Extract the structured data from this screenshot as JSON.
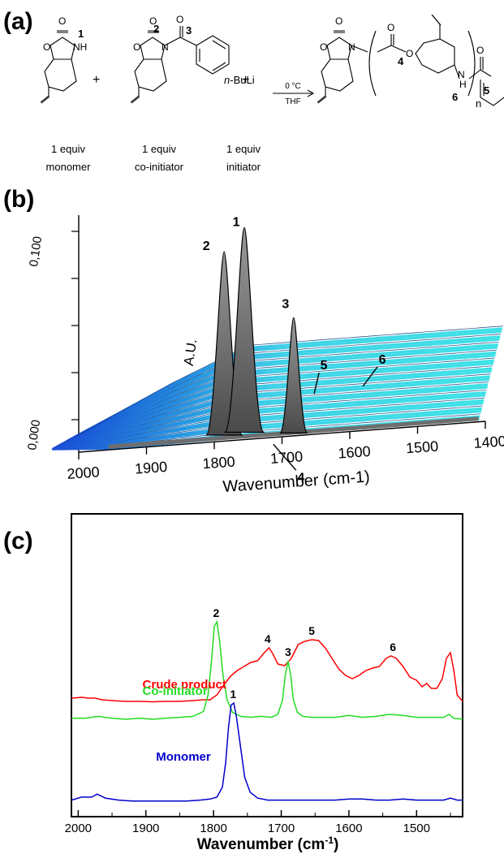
{
  "panels": {
    "a": "(a)",
    "b": "(b)",
    "c": "(c)"
  },
  "scheme": {
    "plus": "+",
    "reagent_prefix": "n",
    "reagent_suffix": "-BuLi",
    "condition_top": "0 °C",
    "condition_bottom": "THF",
    "subscript_n": "n",
    "atoms": {
      "O": "O",
      "NH": "NH",
      "N": "N",
      "H": "H"
    },
    "markers": [
      "1",
      "2",
      "3",
      "4",
      "5",
      "6"
    ],
    "captions": [
      {
        "line1": "1 equiv",
        "line2": "monomer"
      },
      {
        "line1": "1 equiv",
        "line2": "co-initiator"
      },
      {
        "line1": "1 equiv",
        "line2": "initiator"
      }
    ]
  },
  "colors": {
    "crude": "#ff0000",
    "coinitiator": "#22dd22",
    "monomer": "#0000cc",
    "surface_cyan": "#33e0e6",
    "surface_blue": "#1f6fe0",
    "surface_grey": "#6e6e6e"
  },
  "chart_data": [
    {
      "type": "area",
      "panel": "(b)",
      "title": "",
      "xlabel": "Wavenumber (cm-1)",
      "ylabel": "A.U.",
      "x_ticks": [
        2000,
        1900,
        1800,
        1700,
        1600,
        1500,
        1400
      ],
      "x_tick_labels": [
        "2000",
        "1900",
        "1800",
        "1700",
        "1600",
        "1500",
        "1400"
      ],
      "xlim": [
        2000,
        1400
      ],
      "y_tick_labels": [
        "0,000",
        "0,100"
      ],
      "peaks": [
        {
          "label": "1",
          "x": 1770
        },
        {
          "label": "2",
          "x": 1795
        },
        {
          "label": "3",
          "x": 1690
        },
        {
          "label": "4",
          "x": 1720
        },
        {
          "label": "5",
          "x": 1655
        },
        {
          "label": "6",
          "x": 1540
        }
      ]
    },
    {
      "type": "line",
      "panel": "(c)",
      "title": "",
      "xlabel": "Wavenumber (cm",
      "xlabel_sup": "-1",
      "xlabel_close": ")",
      "x_ticks": [
        2000,
        1900,
        1800,
        1700,
        1600,
        1500
      ],
      "x_tick_labels": [
        "2000",
        "1900",
        "1800",
        "1700",
        "1600",
        "1500"
      ],
      "xlim": [
        2010,
        1432
      ],
      "series": [
        {
          "name": "Crude product",
          "x": [
            2010,
            1995,
            1985,
            1975,
            1965,
            1950,
            1930,
            1910,
            1890,
            1870,
            1850,
            1830,
            1815,
            1805,
            1795,
            1785,
            1775,
            1765,
            1755,
            1745,
            1735,
            1725,
            1718,
            1712,
            1705,
            1695,
            1685,
            1675,
            1665,
            1655,
            1645,
            1635,
            1625,
            1615,
            1605,
            1595,
            1585,
            1575,
            1565,
            1555,
            1545,
            1538,
            1530,
            1520,
            1510,
            1500,
            1492,
            1485,
            1478,
            1470,
            1462,
            1456,
            1450,
            1445,
            1440,
            1432
          ],
          "values": [
            0.06,
            0.07,
            0.06,
            0.06,
            0.04,
            0.03,
            0.02,
            0.02,
            0.015,
            0.02,
            0.02,
            0.03,
            0.04,
            0.04,
            0.1,
            0.22,
            0.33,
            0.4,
            0.45,
            0.5,
            0.52,
            0.62,
            0.68,
            0.6,
            0.48,
            0.46,
            0.55,
            0.72,
            0.76,
            0.78,
            0.77,
            0.68,
            0.55,
            0.42,
            0.34,
            0.3,
            0.34,
            0.4,
            0.43,
            0.45,
            0.55,
            0.58,
            0.55,
            0.45,
            0.32,
            0.28,
            0.2,
            0.24,
            0.18,
            0.18,
            0.3,
            0.55,
            0.62,
            0.4,
            0.1,
            0.02
          ],
          "label_x": 1905,
          "label_y": 0.18
        },
        {
          "name": "Co-initiator",
          "x": [
            2010,
            1990,
            1970,
            1950,
            1930,
            1910,
            1890,
            1870,
            1850,
            1830,
            1815,
            1808,
            1803,
            1799,
            1795,
            1791,
            1786,
            1780,
            1772,
            1760,
            1745,
            1730,
            1715,
            1705,
            1698,
            1694,
            1690,
            1686,
            1682,
            1676,
            1668,
            1655,
            1640,
            1620,
            1600,
            1580,
            1560,
            1540,
            1520,
            1500,
            1480,
            1460,
            1452,
            1445,
            1432
          ],
          "values": [
            0.01,
            0.01,
            0.03,
            0.01,
            0.0,
            0.01,
            0.0,
            0.01,
            0.02,
            0.03,
            0.08,
            0.25,
            0.6,
            0.95,
            1.0,
            0.8,
            0.45,
            0.2,
            0.07,
            0.03,
            0.02,
            0.03,
            0.02,
            0.05,
            0.2,
            0.45,
            0.6,
            0.45,
            0.2,
            0.07,
            0.03,
            0.02,
            0.02,
            0.02,
            0.04,
            0.02,
            0.03,
            0.05,
            0.04,
            0.02,
            0.02,
            0.02,
            0.05,
            0.01,
            0.0
          ],
          "label_x": 1905,
          "label_y": 0.25
        },
        {
          "name": "Monomer",
          "x": [
            2010,
            1995,
            1980,
            1972,
            1960,
            1940,
            1920,
            1900,
            1880,
            1860,
            1840,
            1820,
            1805,
            1795,
            1787,
            1782,
            1778,
            1774,
            1770,
            1766,
            1760,
            1754,
            1746,
            1735,
            1720,
            1700,
            1680,
            1660,
            1640,
            1620,
            1600,
            1580,
            1560,
            1540,
            1520,
            1500,
            1480,
            1460,
            1450,
            1440,
            1432
          ],
          "values": [
            0.02,
            0.05,
            0.05,
            0.08,
            0.04,
            0.02,
            0.01,
            0.01,
            0.01,
            0.01,
            0.01,
            0.02,
            0.03,
            0.05,
            0.15,
            0.4,
            0.75,
            0.98,
            1.0,
            0.85,
            0.55,
            0.25,
            0.1,
            0.04,
            0.02,
            0.02,
            0.02,
            0.02,
            0.02,
            0.02,
            0.03,
            0.03,
            0.02,
            0.02,
            0.03,
            0.02,
            0.02,
            0.02,
            0.04,
            0.02,
            0.02
          ],
          "label_x": 1885,
          "label_y": 0.42
        }
      ],
      "peak_labels": [
        {
          "label": "4",
          "x": 1720,
          "series": "Crude product"
        },
        {
          "label": "5",
          "x": 1655,
          "series": "Crude product"
        },
        {
          "label": "6",
          "x": 1535,
          "series": "Crude product"
        },
        {
          "label": "2",
          "x": 1796,
          "series": "Co-initiator"
        },
        {
          "label": "3",
          "x": 1690,
          "series": "Co-initiator"
        },
        {
          "label": "1",
          "x": 1771,
          "series": "Monomer"
        }
      ]
    }
  ]
}
